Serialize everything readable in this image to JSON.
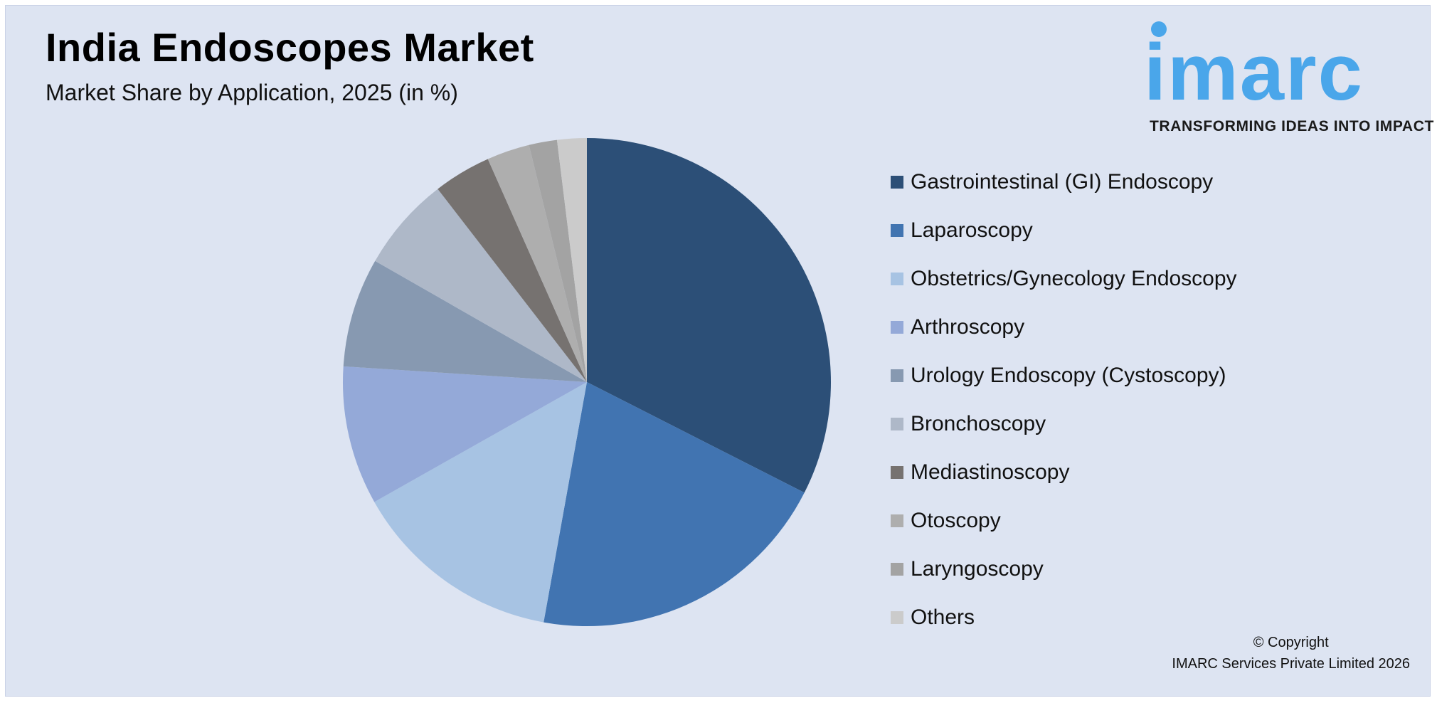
{
  "header": {
    "title": "India Endoscopes Market",
    "subtitle": "Market Share by Application, 2025 (in %)"
  },
  "logo": {
    "wordmark": "imarc",
    "tagline": "TRANSFORMING IDEAS INTO IMPACT",
    "color": "#4aa6ea"
  },
  "copyright": {
    "line1": "© Copyright",
    "line2": "IMARC Services Private Limited 2026"
  },
  "chart_data": {
    "type": "pie",
    "start": "12 o'clock, clockwise",
    "legend_position": "right",
    "slices": [
      {
        "label": "Gastrointestinal (GI) Endoscopy",
        "value": 33.2,
        "color": "#2c4f77"
      },
      {
        "label": "Laparoscopy",
        "value": 20.8,
        "color": "#4174b1"
      },
      {
        "label": "Obstetrics/Gynecology Endoscopy",
        "value": 14.3,
        "color": "#a7c3e3"
      },
      {
        "label": "Arthroscopy",
        "value": 9.4,
        "color": "#94a9d8"
      },
      {
        "label": "Urology Endoscopy (Cystoscopy)",
        "value": 7.4,
        "color": "#8799b1"
      },
      {
        "label": "Bronchoscopy",
        "value": 6.4,
        "color": "#aeb8c8"
      },
      {
        "label": "Mediastinoscopy",
        "value": 3.9,
        "color": "#767270"
      },
      {
        "label": "Otoscopy",
        "value": 2.9,
        "color": "#aeaeae"
      },
      {
        "label": "Laryngoscopy",
        "value": 1.9,
        "color": "#a3a3a3"
      },
      {
        "label": "Others",
        "value": 2.0,
        "color": "#cbcbcb"
      }
    ]
  }
}
